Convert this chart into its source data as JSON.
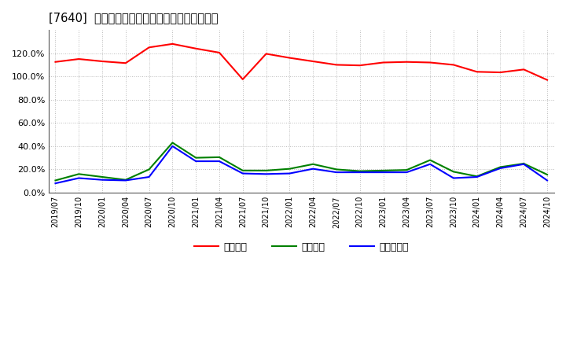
{
  "title": "[7640]  流動比率、当座比率、現預金比率の推移",
  "x_labels": [
    "2019/07",
    "2019/10",
    "2020/01",
    "2020/04",
    "2020/07",
    "2020/10",
    "2021/01",
    "2021/04",
    "2021/07",
    "2021/10",
    "2022/01",
    "2022/04",
    "2022/07",
    "2022/10",
    "2023/01",
    "2023/04",
    "2023/07",
    "2023/10",
    "2024/01",
    "2024/04",
    "2024/07",
    "2024/10"
  ],
  "ryudo": [
    112.5,
    115.0,
    113.0,
    111.5,
    125.0,
    128.0,
    124.0,
    120.5,
    97.5,
    119.5,
    116.0,
    113.0,
    110.0,
    109.5,
    112.0,
    112.5,
    112.0,
    110.0,
    104.0,
    103.5,
    106.0,
    97.0
  ],
  "toza": [
    10.5,
    16.0,
    13.5,
    11.0,
    20.0,
    43.0,
    30.0,
    30.5,
    19.0,
    19.0,
    20.5,
    24.5,
    20.0,
    18.5,
    19.0,
    19.5,
    28.0,
    18.0,
    14.0,
    22.0,
    25.0,
    15.5
  ],
  "genkin": [
    8.0,
    12.5,
    11.0,
    10.5,
    13.5,
    40.0,
    27.0,
    27.0,
    16.5,
    16.0,
    16.5,
    20.5,
    17.5,
    17.5,
    17.5,
    17.5,
    24.5,
    12.5,
    13.5,
    21.0,
    24.5,
    10.5
  ],
  "ryudo_color": "#ff0000",
  "toza_color": "#008000",
  "genkin_color": "#0000ff",
  "background_color": "#ffffff",
  "grid_color": "#aaaaaa",
  "ylim": [
    0,
    140
  ],
  "yticks": [
    0,
    20,
    40,
    60,
    80,
    100,
    120
  ],
  "legend_labels": [
    "流動比率",
    "当座比率",
    "現預金比率"
  ]
}
